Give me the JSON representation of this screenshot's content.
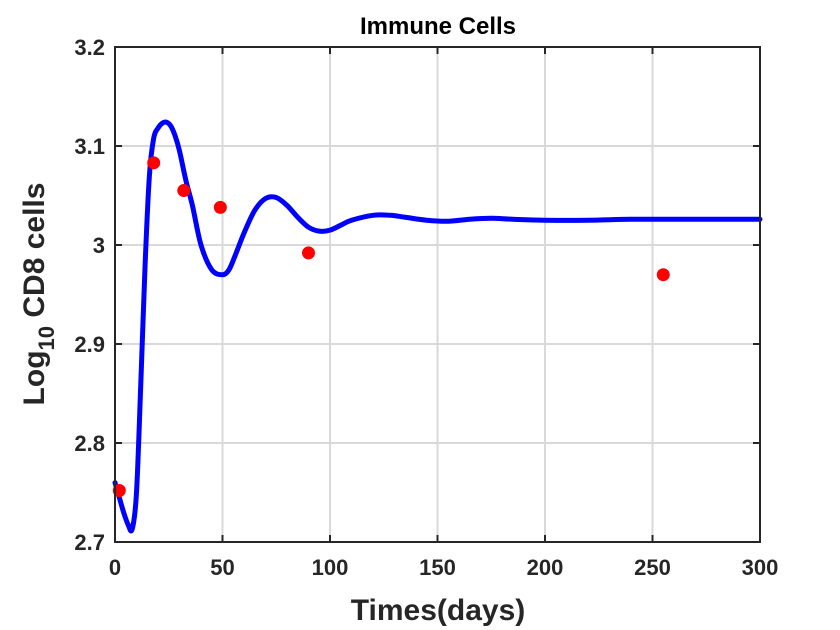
{
  "chart_data": {
    "type": "line",
    "title": "Immune Cells",
    "xlabel": "Times(days)",
    "ylabel": {
      "prefix": "Log",
      "subscript": "10",
      "suffix": " CD8 cells"
    },
    "xlim": [
      0,
      300
    ],
    "ylim": [
      2.7,
      3.2
    ],
    "xticks": [
      0,
      50,
      100,
      150,
      200,
      250,
      300
    ],
    "yticks": [
      2.7,
      2.8,
      2.9,
      3.0,
      3.1,
      3.2
    ],
    "xtick_labels": [
      "0",
      "50",
      "100",
      "150",
      "200",
      "250",
      "300"
    ],
    "ytick_labels": [
      "2.7",
      "2.8",
      "2.9",
      "3",
      "3.1",
      "3.2"
    ],
    "grid": true,
    "series": [
      {
        "kind": "line",
        "color": "#0000ff",
        "x": [
          0,
          2,
          4,
          6,
          8,
          10,
          12,
          14,
          16,
          18,
          20,
          22,
          24,
          26,
          28,
          30,
          33,
          36,
          40,
          45,
          50,
          53,
          56,
          60,
          65,
          70,
          75,
          80,
          85,
          90,
          95,
          100,
          105,
          110,
          120,
          128,
          135,
          145,
          155,
          165,
          175,
          185,
          200,
          220,
          240,
          260,
          280,
          300
        ],
        "y": [
          2.76,
          2.745,
          2.73,
          2.718,
          2.713,
          2.75,
          2.86,
          2.98,
          3.07,
          3.108,
          3.118,
          3.123,
          3.124,
          3.12,
          3.11,
          3.095,
          3.065,
          3.04,
          3.0,
          2.975,
          2.97,
          2.975,
          2.99,
          3.012,
          3.035,
          3.047,
          3.048,
          3.04,
          3.028,
          3.018,
          3.014,
          3.015,
          3.02,
          3.025,
          3.03,
          3.03,
          3.028,
          3.025,
          3.024,
          3.026,
          3.027,
          3.026,
          3.025,
          3.025,
          3.026,
          3.026,
          3.026,
          3.026
        ]
      },
      {
        "kind": "scatter",
        "color": "#ff0000",
        "x": [
          2,
          18,
          32,
          49,
          90,
          255
        ],
        "y": [
          2.752,
          3.083,
          3.055,
          3.038,
          2.992,
          2.97
        ]
      }
    ]
  }
}
